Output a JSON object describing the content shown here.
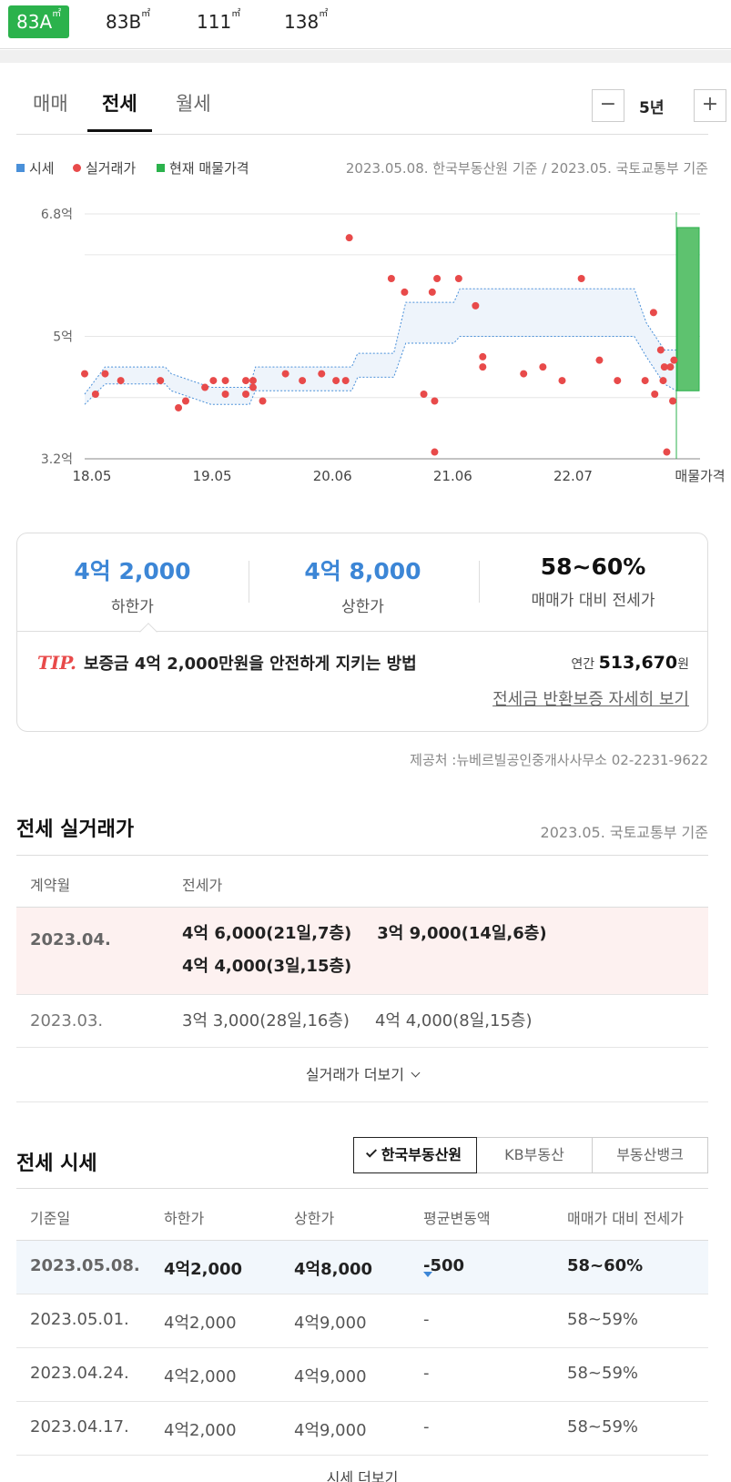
{
  "area_tabs": [
    {
      "label": "83A",
      "unit": "㎡",
      "active": true
    },
    {
      "label": "83B",
      "unit": "㎡",
      "active": false
    },
    {
      "label": "111",
      "unit": "㎡",
      "active": false
    },
    {
      "label": "138",
      "unit": "㎡",
      "active": false
    }
  ],
  "trade_tabs": [
    {
      "label": "매매",
      "active": false
    },
    {
      "label": "전세",
      "active": true
    },
    {
      "label": "월세",
      "active": false
    }
  ],
  "period": {
    "minus": "−",
    "label": "5년",
    "plus": "+"
  },
  "legend": {
    "items": [
      {
        "label": "시세",
        "color": "#4a90d9"
      },
      {
        "label": "실거래가",
        "color": "#e84a4a"
      },
      {
        "label": "현재 매물가격",
        "color": "#2bb24c"
      }
    ],
    "basis": "2023.05.08. 한국부동산원 기준 / 2023.05. 국토교통부 기준"
  },
  "chart_data": {
    "type": "scatter",
    "yunit": "억",
    "ylim": [
      3.2,
      6.8
    ],
    "yticks": [
      "6.8억",
      "5억",
      "3.2억"
    ],
    "xlim": [
      2018.33,
      2023.25
    ],
    "xticks": [
      "18.05",
      "19.05",
      "20.06",
      "21.06",
      "22.07"
    ],
    "listing_label": "매물가격",
    "listing_range": [
      4.2,
      6.6
    ],
    "market_band": [
      [
        2018.33,
        4.0,
        4.15
      ],
      [
        2018.5,
        4.3,
        4.55
      ],
      [
        2019.0,
        4.3,
        4.55
      ],
      [
        2019.05,
        4.2,
        4.45
      ],
      [
        2019.38,
        4.0,
        4.25
      ],
      [
        2019.7,
        4.0,
        4.25
      ],
      [
        2019.75,
        4.2,
        4.55
      ],
      [
        2020.55,
        4.2,
        4.55
      ],
      [
        2020.6,
        4.4,
        4.75
      ],
      [
        2020.9,
        4.4,
        4.75
      ],
      [
        2021.0,
        4.9,
        5.5
      ],
      [
        2021.4,
        4.9,
        5.5
      ],
      [
        2021.45,
        5.0,
        5.7
      ],
      [
        2022.9,
        5.0,
        5.7
      ],
      [
        2023.0,
        4.7,
        5.2
      ],
      [
        2023.15,
        4.3,
        4.8
      ],
      [
        2023.25,
        4.2,
        4.8
      ]
    ],
    "trades": [
      [
        2018.33,
        4.45
      ],
      [
        2018.42,
        4.15
      ],
      [
        2018.5,
        4.45
      ],
      [
        2018.63,
        4.35
      ],
      [
        2018.96,
        4.35
      ],
      [
        2019.11,
        3.95
      ],
      [
        2019.17,
        4.05
      ],
      [
        2019.33,
        4.25
      ],
      [
        2019.4,
        4.35
      ],
      [
        2019.5,
        4.35
      ],
      [
        2019.5,
        4.15
      ],
      [
        2019.67,
        4.35
      ],
      [
        2019.67,
        4.15
      ],
      [
        2019.73,
        4.35
      ],
      [
        2019.73,
        4.25
      ],
      [
        2019.81,
        4.05
      ],
      [
        2020.0,
        4.45
      ],
      [
        2020.14,
        4.35
      ],
      [
        2020.3,
        4.45
      ],
      [
        2020.42,
        4.35
      ],
      [
        2020.5,
        4.35
      ],
      [
        2020.53,
        6.45
      ],
      [
        2020.88,
        5.85
      ],
      [
        2020.99,
        5.65
      ],
      [
        2021.15,
        4.15
      ],
      [
        2021.22,
        5.65
      ],
      [
        2021.24,
        4.05
      ],
      [
        2021.24,
        3.3
      ],
      [
        2021.26,
        5.85
      ],
      [
        2021.44,
        5.85
      ],
      [
        2021.58,
        5.45
      ],
      [
        2021.64,
        4.7
      ],
      [
        2021.64,
        4.55
      ],
      [
        2021.98,
        4.45
      ],
      [
        2022.14,
        4.55
      ],
      [
        2022.3,
        4.35
      ],
      [
        2022.46,
        5.85
      ],
      [
        2022.61,
        4.65
      ],
      [
        2022.76,
        4.35
      ],
      [
        2022.99,
        4.35
      ],
      [
        2023.07,
        4.15
      ],
      [
        2023.06,
        5.35
      ],
      [
        2023.12,
        4.8
      ],
      [
        2023.14,
        4.35
      ],
      [
        2023.15,
        4.55
      ],
      [
        2023.2,
        4.55
      ],
      [
        2023.17,
        3.3
      ],
      [
        2023.22,
        4.05
      ],
      [
        2023.23,
        4.65
      ]
    ]
  },
  "summary": {
    "low_value": "4억 2,000",
    "low_label": "하한가",
    "high_value": "4억 8,000",
    "high_label": "상한가",
    "ratio_value": "58~60%",
    "ratio_label": "매매가 대비 전세가",
    "tip_mark": "TIP.",
    "tip_text": "보증금 4억 2,000만원을 안전하게 지키는 방법",
    "annual_label": "연간",
    "annual_value": "513,670",
    "annual_unit": "원",
    "guarantee_link": "전세금 반환보증 자세히 보기"
  },
  "provider": "제공처 :뉴베르빌공인중개사사무소 02-2231-9622",
  "transactions": {
    "title": "전세 실거래가",
    "basis": "2023.05. 국토교통부 기준",
    "col_month": "계약월",
    "col_price": "전세가",
    "rows": [
      {
        "month": "2023.04.",
        "prices": [
          "4억 6,000(21일,7층)",
          "3억 9,000(14일,6층)",
          "4억 4,000(3일,15층)"
        ]
      },
      {
        "month": "2023.03.",
        "prices": [
          "3억 3,000(28일,16층)",
          "4억 4,000(8일,15층)"
        ]
      }
    ],
    "more": "실거래가 더보기"
  },
  "prices": {
    "title": "전세 시세",
    "sources": [
      {
        "label": "한국부동산원",
        "active": true
      },
      {
        "label": "KB부동산",
        "active": false
      },
      {
        "label": "부동산뱅크",
        "active": false
      }
    ],
    "cols": [
      "기준일",
      "하한가",
      "상한가",
      "평균변동액",
      "매매가 대비 전세가"
    ],
    "rows": [
      {
        "date": "2023.05.08.",
        "low": "4억2,000",
        "high": "4억8,000",
        "change": "-500",
        "ratio": "58~60%"
      },
      {
        "date": "2023.05.01.",
        "low": "4억2,000",
        "high": "4억9,000",
        "change": "-",
        "ratio": "58~59%"
      },
      {
        "date": "2023.04.24.",
        "low": "4억2,000",
        "high": "4억9,000",
        "change": "-",
        "ratio": "58~59%"
      },
      {
        "date": "2023.04.17.",
        "low": "4억2,000",
        "high": "4억9,000",
        "change": "-",
        "ratio": "58~59%"
      }
    ],
    "more": "시세 더보기"
  }
}
